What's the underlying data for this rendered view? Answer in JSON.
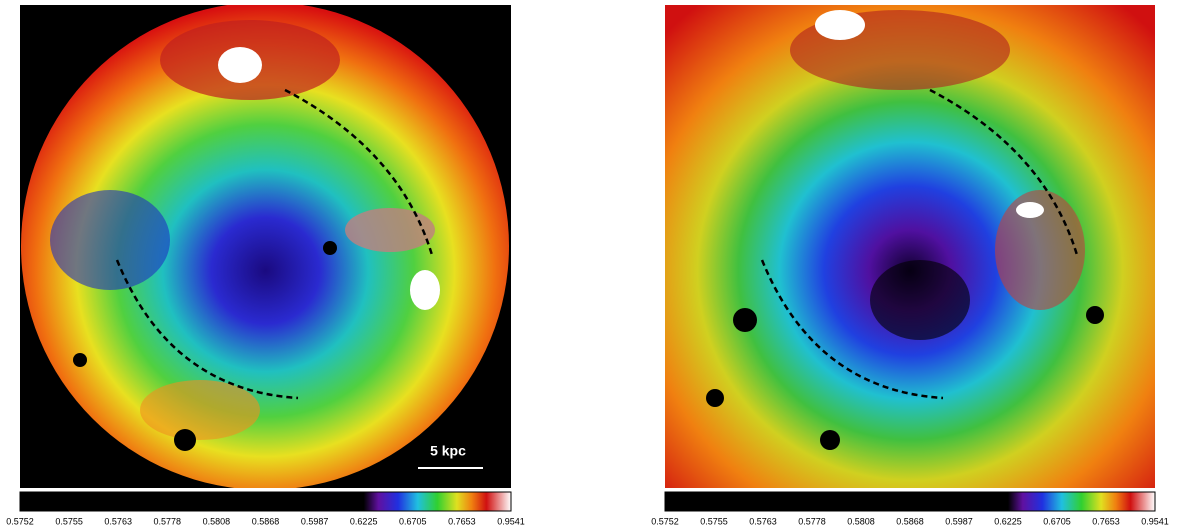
{
  "panels": [
    {
      "scale_bar": "5 kpc",
      "colorbar": {
        "ticks": [
          0.5752,
          0.5755,
          0.5763,
          0.5778,
          0.5808,
          0.5868,
          0.5987,
          0.6225,
          0.6705,
          0.7653,
          0.9541
        ]
      }
    },
    {
      "colorbar": {
        "ticks": [
          0.5752,
          0.5755,
          0.5763,
          0.5778,
          0.5808,
          0.5868,
          0.5987,
          0.6225,
          0.6705,
          0.7653,
          0.9541
        ]
      }
    }
  ]
}
